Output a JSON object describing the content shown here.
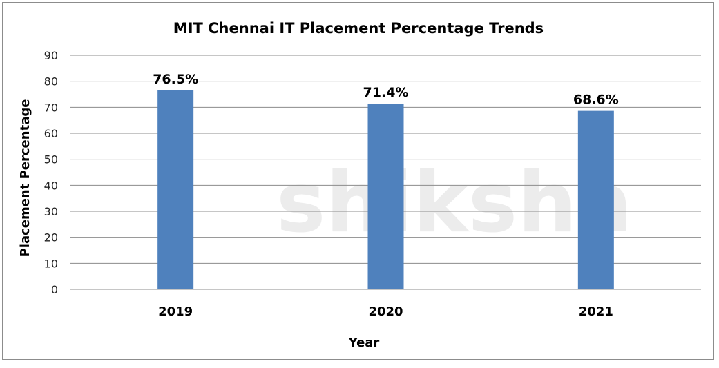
{
  "chart_data": {
    "type": "bar",
    "title": "MIT Chennai IT Placement Percentage Trends",
    "xlabel": "Year",
    "ylabel": "Placement Percentage",
    "categories": [
      "2019",
      "2020",
      "2021"
    ],
    "values": [
      76.5,
      71.4,
      68.6
    ],
    "data_labels": [
      "76.5%",
      "71.4%",
      "68.6%"
    ],
    "ylim": [
      0,
      90
    ],
    "yticks": [
      0,
      10,
      20,
      30,
      40,
      50,
      60,
      70,
      80,
      90
    ],
    "grid": true,
    "legend": "none",
    "bar_color": "#4f81bd"
  },
  "watermark": "shiksha"
}
